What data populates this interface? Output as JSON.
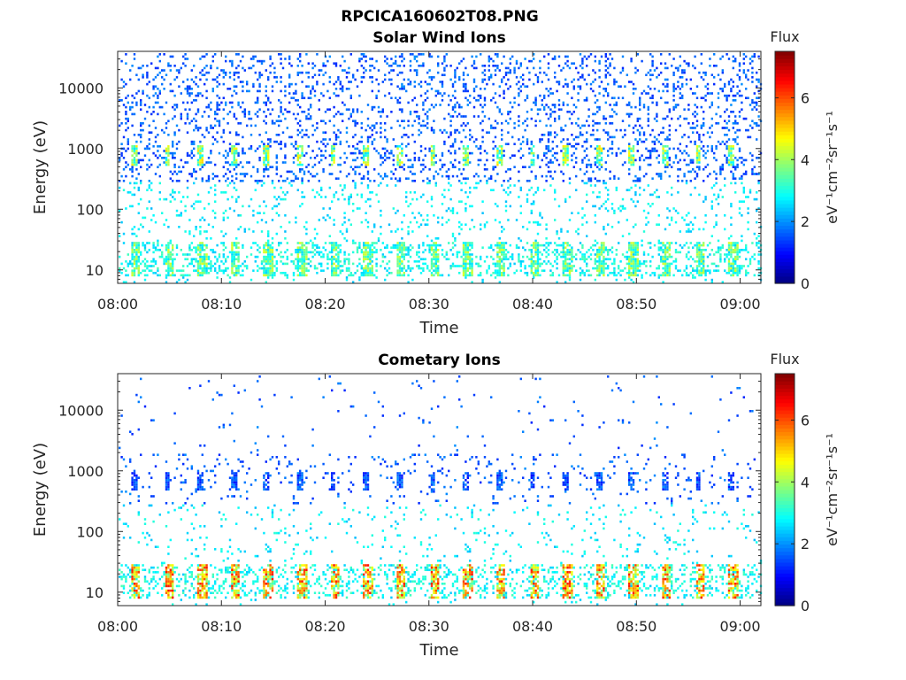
{
  "figure_title": "RPCICA160602T08.PNG",
  "chart_data": [
    {
      "type": "heatmap",
      "title": "Solar Wind Ions",
      "xlabel": "Time",
      "ylabel": "Energy (eV)",
      "xlim": [
        "08:00",
        "09:02"
      ],
      "ylim": [
        6,
        40000
      ],
      "yscale": "log",
      "xticks": [
        "08:00",
        "08:10",
        "08:20",
        "08:30",
        "08:40",
        "08:50",
        "09:00"
      ],
      "yticks": [
        10,
        100,
        1000,
        10000
      ],
      "yticklabels": [
        "10",
        "100",
        "1000",
        "10000"
      ],
      "colorbar": {
        "title": "Flux",
        "label": "eV⁻¹cm⁻²sr⁻¹s⁻¹",
        "range": [
          0,
          7.5
        ],
        "ticks": [
          "0",
          "2",
          "4",
          "6"
        ],
        "colormap": "jet"
      },
      "features": {
        "sweep_period_min": 3.2,
        "peak_energy_eV": 800,
        "peak_flux": 5,
        "low_energy_band_eV": [
          8,
          30
        ],
        "low_energy_flux": 4.5
      }
    },
    {
      "type": "heatmap",
      "title": "Cometary Ions",
      "xlabel": "Time",
      "ylabel": "Energy (eV)",
      "xlim": [
        "08:00",
        "09:02"
      ],
      "ylim": [
        6,
        40000
      ],
      "yscale": "log",
      "xticks": [
        "08:00",
        "08:10",
        "08:20",
        "08:30",
        "08:40",
        "08:50",
        "09:00"
      ],
      "yticks": [
        10,
        100,
        1000,
        10000
      ],
      "yticklabels": [
        "10",
        "100",
        "1000",
        "10000"
      ],
      "colorbar": {
        "title": "Flux",
        "label": "eV⁻¹cm⁻²sr⁻¹s⁻¹",
        "range": [
          0,
          7.5
        ],
        "ticks": [
          "0",
          "2",
          "4",
          "6"
        ],
        "colormap": "jet"
      },
      "features": {
        "sweep_period_min": 3.2,
        "peak_energy_eV": 700,
        "peak_flux": 2,
        "low_energy_band_eV": [
          8,
          30
        ],
        "low_energy_flux": 6.5
      }
    }
  ]
}
